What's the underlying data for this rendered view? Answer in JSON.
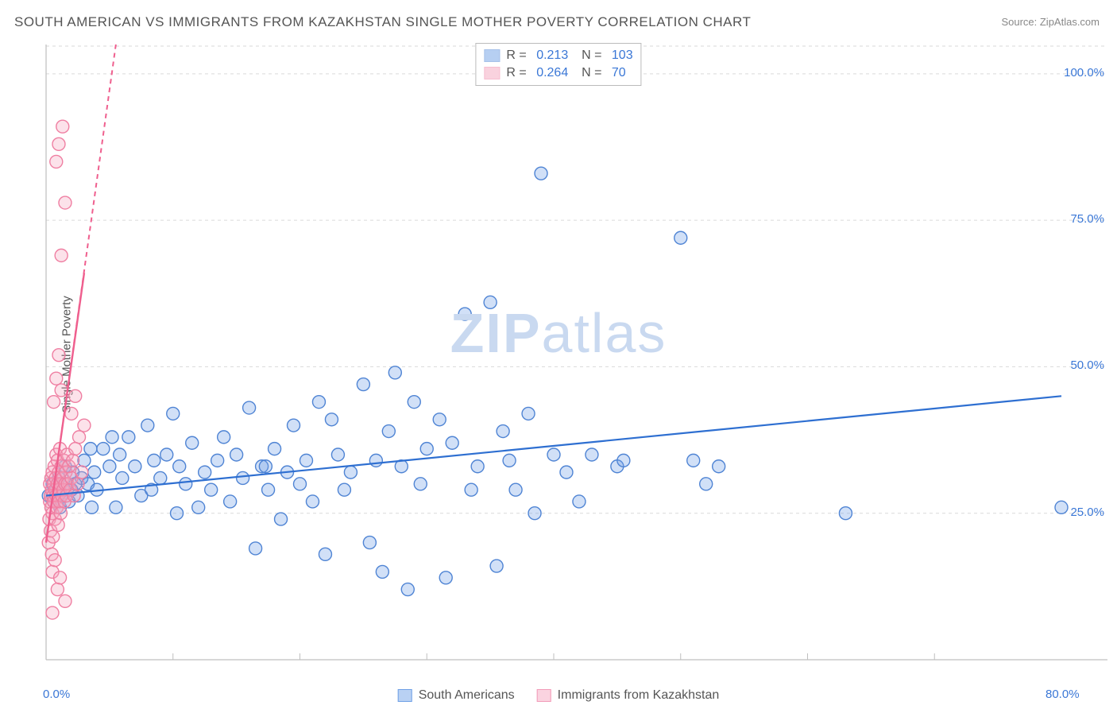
{
  "title": "SOUTH AMERICAN VS IMMIGRANTS FROM KAZAKHSTAN SINGLE MOTHER POVERTY CORRELATION CHART",
  "source_label": "Source: ",
  "source_value": "ZipAtlas.com",
  "ylabel": "Single Mother Poverty",
  "watermark_a": "ZIP",
  "watermark_b": "atlas",
  "chart": {
    "type": "scatter",
    "xlim": [
      0,
      80
    ],
    "ylim": [
      0,
      105
    ],
    "xticks": [
      {
        "v": 0,
        "label": "0.0%"
      },
      {
        "v": 80,
        "label": "80.0%"
      }
    ],
    "yticks": [
      {
        "v": 25,
        "label": "25.0%"
      },
      {
        "v": 50,
        "label": "50.0%"
      },
      {
        "v": 75,
        "label": "75.0%"
      },
      {
        "v": 100,
        "label": "100.0%"
      }
    ],
    "grid_color": "#d9d9d9",
    "axis_color": "#bfbfbf",
    "background": "#ffffff",
    "marker_radius": 8,
    "marker_fill_opacity": 0.32,
    "marker_stroke_width": 1.4,
    "series": [
      {
        "name": "South Americans",
        "color": "#6fa0e6",
        "stroke": "#4f84d4",
        "R": 0.213,
        "N": 103,
        "trend": {
          "x1": 0,
          "y1": 28,
          "x2": 80,
          "y2": 45,
          "color": "#2e6fd1",
          "width": 2.2,
          "dash": null
        },
        "points": [
          [
            0.2,
            28
          ],
          [
            0.5,
            30
          ],
          [
            0.6,
            27
          ],
          [
            0.8,
            29
          ],
          [
            1.0,
            31
          ],
          [
            1.1,
            26
          ],
          [
            1.2,
            28
          ],
          [
            1.5,
            33
          ],
          [
            1.6,
            30
          ],
          [
            1.8,
            27
          ],
          [
            2.0,
            29
          ],
          [
            2.1,
            32
          ],
          [
            2.3,
            30
          ],
          [
            2.5,
            28
          ],
          [
            2.8,
            31
          ],
          [
            3.0,
            34
          ],
          [
            3.3,
            30
          ],
          [
            3.5,
            36
          ],
          [
            3.6,
            26
          ],
          [
            3.8,
            32
          ],
          [
            4.0,
            29
          ],
          [
            4.5,
            36
          ],
          [
            5.0,
            33
          ],
          [
            5.2,
            38
          ],
          [
            5.5,
            26
          ],
          [
            5.8,
            35
          ],
          [
            6.0,
            31
          ],
          [
            6.5,
            38
          ],
          [
            7.0,
            33
          ],
          [
            7.5,
            28
          ],
          [
            8.0,
            40
          ],
          [
            8.3,
            29
          ],
          [
            8.5,
            34
          ],
          [
            9.0,
            31
          ],
          [
            9.5,
            35
          ],
          [
            10.0,
            42
          ],
          [
            10.3,
            25
          ],
          [
            10.5,
            33
          ],
          [
            11.0,
            30
          ],
          [
            11.5,
            37
          ],
          [
            12.0,
            26
          ],
          [
            12.5,
            32
          ],
          [
            13.0,
            29
          ],
          [
            13.5,
            34
          ],
          [
            14.0,
            38
          ],
          [
            14.5,
            27
          ],
          [
            15.0,
            35
          ],
          [
            15.5,
            31
          ],
          [
            16.0,
            43
          ],
          [
            16.5,
            19
          ],
          [
            17.0,
            33
          ],
          [
            17.5,
            29
          ],
          [
            18.0,
            36
          ],
          [
            18.5,
            24
          ],
          [
            19.0,
            32
          ],
          [
            19.5,
            40
          ],
          [
            20.0,
            30
          ],
          [
            20.5,
            34
          ],
          [
            21.0,
            27
          ],
          [
            21.5,
            44
          ],
          [
            22.0,
            18
          ],
          [
            22.5,
            41
          ],
          [
            23.0,
            35
          ],
          [
            23.5,
            29
          ],
          [
            24.0,
            32
          ],
          [
            25.0,
            47
          ],
          [
            25.5,
            20
          ],
          [
            26.0,
            34
          ],
          [
            26.5,
            15
          ],
          [
            27.0,
            39
          ],
          [
            27.5,
            49
          ],
          [
            28.0,
            33
          ],
          [
            28.5,
            12
          ],
          [
            29.0,
            44
          ],
          [
            29.5,
            30
          ],
          [
            30.0,
            36
          ],
          [
            31.0,
            41
          ],
          [
            31.5,
            14
          ],
          [
            32.0,
            37
          ],
          [
            33.0,
            59
          ],
          [
            33.5,
            29
          ],
          [
            34.0,
            33
          ],
          [
            35.0,
            61
          ],
          [
            35.5,
            16
          ],
          [
            36.0,
            39
          ],
          [
            36.5,
            34
          ],
          [
            37.0,
            29
          ],
          [
            38.0,
            42
          ],
          [
            38.5,
            25
          ],
          [
            39.0,
            83
          ],
          [
            40.0,
            35
          ],
          [
            41.0,
            32
          ],
          [
            42.0,
            27
          ],
          [
            43.0,
            35
          ],
          [
            45.0,
            33
          ],
          [
            45.5,
            34
          ],
          [
            50.0,
            72
          ],
          [
            51.0,
            34
          ],
          [
            52.0,
            30
          ],
          [
            53.0,
            33
          ],
          [
            63.0,
            25
          ],
          [
            80.0,
            26
          ],
          [
            17.3,
            33
          ]
        ]
      },
      {
        "name": "Immigrants from Kazakhstan",
        "color": "#f5a6be",
        "stroke": "#ef7fa2",
        "R": 0.264,
        "N": 70,
        "trend": {
          "x1": 0,
          "y1": 20,
          "x2": 5.5,
          "y2": 105,
          "color": "#ef5f8e",
          "width": 2.0,
          "dash": "6,5"
        },
        "trend_solid": {
          "x1": 0,
          "y1": 20,
          "x2": 3.0,
          "y2": 66,
          "color": "#ef5f8e",
          "width": 2.4
        },
        "points": [
          [
            0.2,
            20
          ],
          [
            0.25,
            24
          ],
          [
            0.3,
            27
          ],
          [
            0.3,
            30
          ],
          [
            0.35,
            22
          ],
          [
            0.35,
            28
          ],
          [
            0.4,
            26
          ],
          [
            0.4,
            31
          ],
          [
            0.45,
            18
          ],
          [
            0.45,
            29
          ],
          [
            0.5,
            25
          ],
          [
            0.5,
            32
          ],
          [
            0.55,
            21
          ],
          [
            0.55,
            28
          ],
          [
            0.6,
            30
          ],
          [
            0.6,
            27
          ],
          [
            0.65,
            33
          ],
          [
            0.7,
            24
          ],
          [
            0.7,
            29
          ],
          [
            0.75,
            31
          ],
          [
            0.8,
            35
          ],
          [
            0.8,
            28
          ],
          [
            0.85,
            26
          ],
          [
            0.9,
            30
          ],
          [
            0.9,
            34
          ],
          [
            0.95,
            23
          ],
          [
            1.0,
            29
          ],
          [
            1.0,
            32
          ],
          [
            1.05,
            27
          ],
          [
            1.1,
            36
          ],
          [
            1.1,
            30
          ],
          [
            1.15,
            25
          ],
          [
            1.2,
            33
          ],
          [
            1.25,
            28
          ],
          [
            1.3,
            31
          ],
          [
            1.35,
            29
          ],
          [
            1.4,
            34
          ],
          [
            1.45,
            27
          ],
          [
            1.5,
            30
          ],
          [
            1.55,
            32
          ],
          [
            1.6,
            28
          ],
          [
            1.65,
            35
          ],
          [
            1.7,
            30
          ],
          [
            1.8,
            33
          ],
          [
            1.9,
            29
          ],
          [
            2.0,
            31
          ],
          [
            2.1,
            34
          ],
          [
            2.2,
            28
          ],
          [
            2.3,
            36
          ],
          [
            2.5,
            30
          ],
          [
            2.6,
            38
          ],
          [
            2.8,
            32
          ],
          [
            3.0,
            40
          ],
          [
            0.6,
            44
          ],
          [
            0.8,
            48
          ],
          [
            1.0,
            52
          ],
          [
            1.2,
            46
          ],
          [
            0.5,
            15
          ],
          [
            0.7,
            17
          ],
          [
            0.9,
            12
          ],
          [
            1.1,
            14
          ],
          [
            1.5,
            10
          ],
          [
            0.5,
            8
          ],
          [
            1.2,
            69
          ],
          [
            1.5,
            78
          ],
          [
            0.8,
            85
          ],
          [
            1.0,
            88
          ],
          [
            1.3,
            91
          ],
          [
            2.0,
            42
          ],
          [
            2.3,
            45
          ]
        ]
      }
    ]
  },
  "legend_bottom": [
    {
      "label": "South Americans",
      "fill": "#b9d1f3",
      "stroke": "#6fa0e6"
    },
    {
      "label": "Immigrants from Kazakhstan",
      "fill": "#fad3e0",
      "stroke": "#f29bb8"
    }
  ]
}
